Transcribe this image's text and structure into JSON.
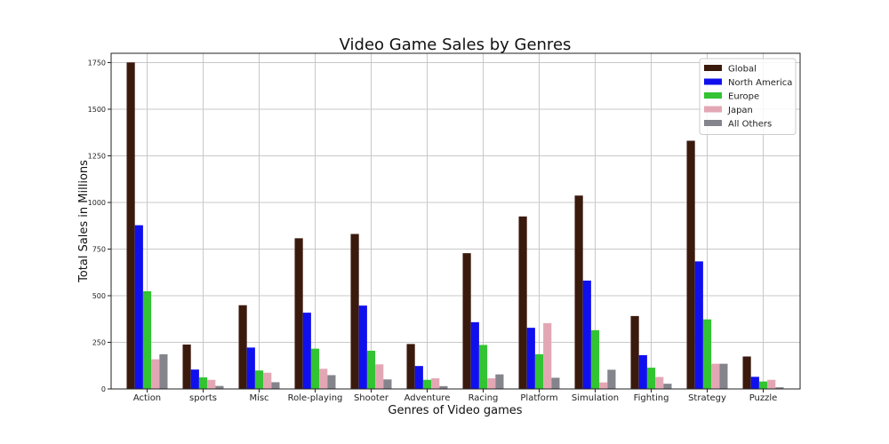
{
  "chart_data": {
    "type": "bar",
    "title": "Video Game Sales by Genres",
    "xlabel": "Genres of Video games",
    "ylabel": "Total Sales in Millions",
    "categories": [
      "Action",
      "sports",
      "Misc",
      "Role-playing",
      "Shooter",
      "Adventure",
      "Racing",
      "Platform",
      "Simulation",
      "Fighting",
      "Strategy",
      "Puzzle"
    ],
    "ylim": [
      0,
      1800
    ],
    "yticks": [
      0,
      250,
      500,
      750,
      1000,
      1250,
      1500,
      1750
    ],
    "grid": true,
    "legend_position": "top-right",
    "series": [
      {
        "name": "Global",
        "color": "#3b1a0e",
        "values": [
          1751,
          238,
          449,
          808,
          831,
          241,
          728,
          925,
          1037,
          391,
          1331,
          174
        ]
      },
      {
        "name": "North America",
        "color": "#1010ee",
        "values": [
          878,
          104,
          222,
          409,
          447,
          123,
          358,
          328,
          581,
          181,
          684,
          65
        ]
      },
      {
        "name": "Europe",
        "color": "#33c333",
        "values": [
          524,
          62,
          99,
          216,
          205,
          49,
          236,
          186,
          315,
          114,
          373,
          40
        ]
      },
      {
        "name": "Japan",
        "color": "#e3a7b4",
        "values": [
          159,
          49,
          87,
          108,
          132,
          57,
          57,
          353,
          35,
          64,
          135,
          49
        ]
      },
      {
        "name": "All Others",
        "color": "#84848c",
        "values": [
          186,
          16,
          36,
          74,
          51,
          15,
          78,
          60,
          103,
          28,
          135,
          9
        ]
      }
    ]
  }
}
